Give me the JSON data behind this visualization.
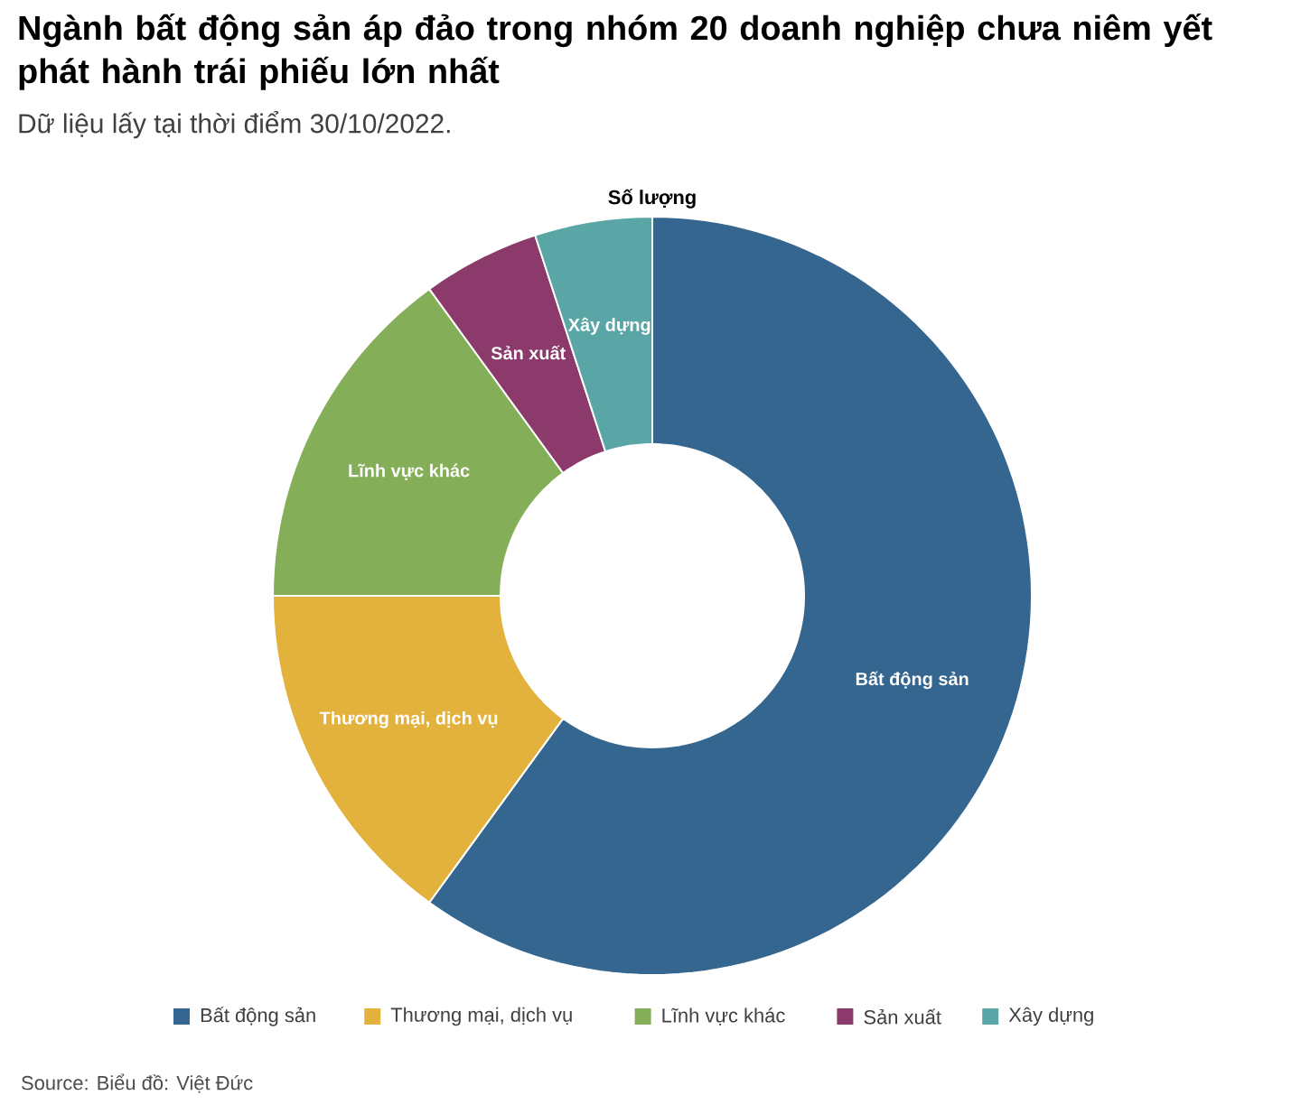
{
  "chart_data": {
    "type": "donut",
    "title": "Ngành bất động sản áp đảo trong nhóm 20 doanh nghiệp chưa niêm yết phát hành trái phiếu lớn nhất",
    "subtitle": "Dữ liệu lấy tại thời điểm 30/10/2022.",
    "categories": [
      "Bất động sản",
      "Thương mại, dịch vụ",
      "Lĩnh vực khác",
      "Sản xuất",
      "Xây dựng"
    ],
    "values": [
      60,
      15,
      15,
      5,
      5
    ],
    "colors": [
      "#35668f",
      "#e3b23c",
      "#84ae57",
      "#8b3a6b",
      "#5aa6a6"
    ],
    "legend": "bottom",
    "annotations": [
      "Số lượng",
      "Source: Biểu đồ: Việt Đức"
    ]
  }
}
